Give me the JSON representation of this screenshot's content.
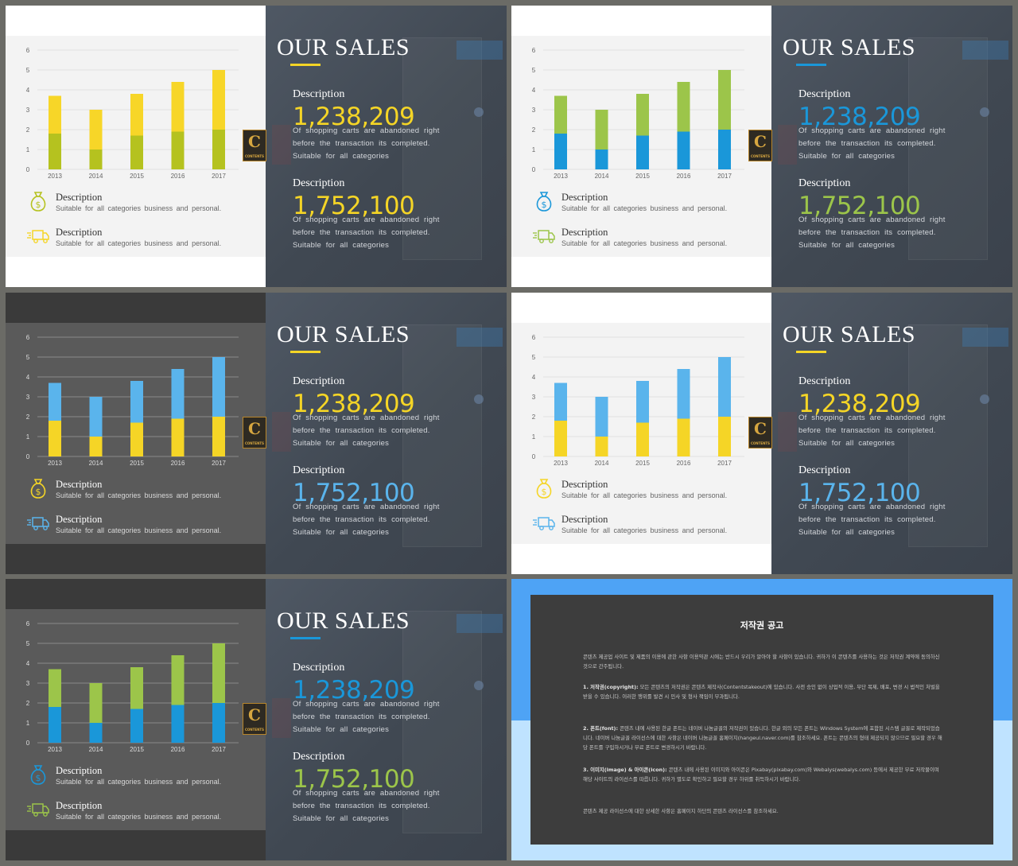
{
  "slides": [
    {
      "id": "s1",
      "theme": "light",
      "bottom_color": "#b5c21f",
      "top_color": "#f7d628",
      "grid_color": "#e2e2e2",
      "axis_text": "#666666",
      "num1_color": "#f5d526",
      "num2_color": "#f5d526",
      "underline": "#f5d526",
      "icon1_color": "#b5c21f",
      "icon2_color": "#f5d526"
    },
    {
      "id": "s2",
      "theme": "light",
      "bottom_color": "#1a97d9",
      "top_color": "#9cc54a",
      "grid_color": "#e2e2e2",
      "axis_text": "#666666",
      "num1_color": "#1a97d9",
      "num2_color": "#9cc54a",
      "underline": "#1a97d9",
      "icon1_color": "#1a97d9",
      "icon2_color": "#9cc54a"
    },
    {
      "id": "s3",
      "theme": "dark",
      "bottom_color": "#f5d526",
      "top_color": "#5ab4ec",
      "grid_color": "#8a8a8a",
      "axis_text": "#dddddd",
      "num1_color": "#f5d526",
      "num2_color": "#5ab4ec",
      "underline": "#f5d526",
      "icon1_color": "#f5d526",
      "icon2_color": "#5ab4ec"
    },
    {
      "id": "s4",
      "theme": "light",
      "bottom_color": "#f5d526",
      "top_color": "#5ab4ec",
      "grid_color": "#e2e2e2",
      "axis_text": "#666666",
      "num1_color": "#f5d526",
      "num2_color": "#5ab4ec",
      "underline": "#f5d526",
      "icon1_color": "#f5d526",
      "icon2_color": "#5ab4ec"
    },
    {
      "id": "s5",
      "theme": "dark",
      "bottom_color": "#1a97d9",
      "top_color": "#9cc54a",
      "grid_color": "#8a8a8a",
      "axis_text": "#dddddd",
      "num1_color": "#1a97d9",
      "num2_color": "#9cc54a",
      "underline": "#1a97d9",
      "icon1_color": "#1a97d9",
      "icon2_color": "#9cc54a"
    }
  ],
  "chart_data": {
    "type": "bar",
    "stacked": true,
    "categories": [
      "2013",
      "2014",
      "2015",
      "2016",
      "2017"
    ],
    "series": [
      {
        "values": [
          1.8,
          1.0,
          1.7,
          1.9,
          2.0
        ]
      },
      {
        "values": [
          1.9,
          2.0,
          2.1,
          2.5,
          3.0
        ]
      }
    ],
    "y_ticks": [
      "0",
      "1",
      "2",
      "3",
      "4",
      "5",
      "6"
    ],
    "ylim": [
      0,
      6
    ],
    "grid": true
  },
  "text": {
    "title": "OUR SALES",
    "section_label": "Description",
    "number1": "1,238,209",
    "number2": "1,752,100",
    "body_line1": "Of shopping carts are abandoned right",
    "body_line2": "before the transaction its completed.",
    "body_line3": "Suitable for all categories",
    "legend_title": "Description",
    "legend_text": "Suitable for all categories business and personal.",
    "logo_letter": "C",
    "logo_sub": "CONTENTS"
  },
  "icons": {
    "legend1": "money-bag-icon",
    "legend2": "delivery-truck-icon"
  },
  "notice": {
    "title": "저작권 공고",
    "intro": "콘텐츠 제공업 사이트 및 제품의 이용에 관한 사항 이용약관 시에는 반드시 우리가 알아야 할 사항이 있습니다. 귀하가 이 콘텐츠를 사용하는 것은 저작권 계약에 동의하신 것으로 간주됩니다.",
    "p1_head": "1. 저작권(copyright):",
    "p1": "모든 콘텐츠의 저작권은 콘텐츠 제작사(Contentstakeout)에 있습니다. 사전 승인 없이 상업적 이용, 무단 복제, 배포, 변경 시 법적인 처벌을 받을 수 있습니다. 이러한 행위를 발견 시 민사 및 형사 책임이 부과됩니다.",
    "p2_head": "2. 폰트(font):",
    "p2": "콘텐츠 내에 사용된 한글 폰트는 네이버 나눔글꼴의 저작권이 있습니다. 한글 외의 모든 폰트는 Windows System에 포함된 시스템 글꼴로 제작되었습니다. 네이버 나눔글꼴 라이선스에 대한 사항은 네이버 나눔글꼴 홈페이지(hangeul.naver.com)를 참조하세요. 폰트는 콘텐츠의 형태 제공되지 않으므로 필요할 경우 해당 폰트를 구입하시거나 무료 폰트로 변경하시기 바랍니다.",
    "p3_head": "3. 이미지(image) & 아이콘(icon):",
    "p3": "콘텐츠 내에 사용된 이미지와 아이콘은 Pixabay(pixabay.com)와 Webalys(webalys.com) 등에서 제공한 무료 저작물이며 해당 사이트의 라이선스를 따릅니다. 귀하가 별도로 확인하고 필요할 경우 하위를 취득하시기 바랍니다.",
    "outro": "콘텐츠 제공 라이선스에 대한 상세한 사항은 홈페이지 하단의 콘텐츠 라이선스를 참조하세요."
  }
}
